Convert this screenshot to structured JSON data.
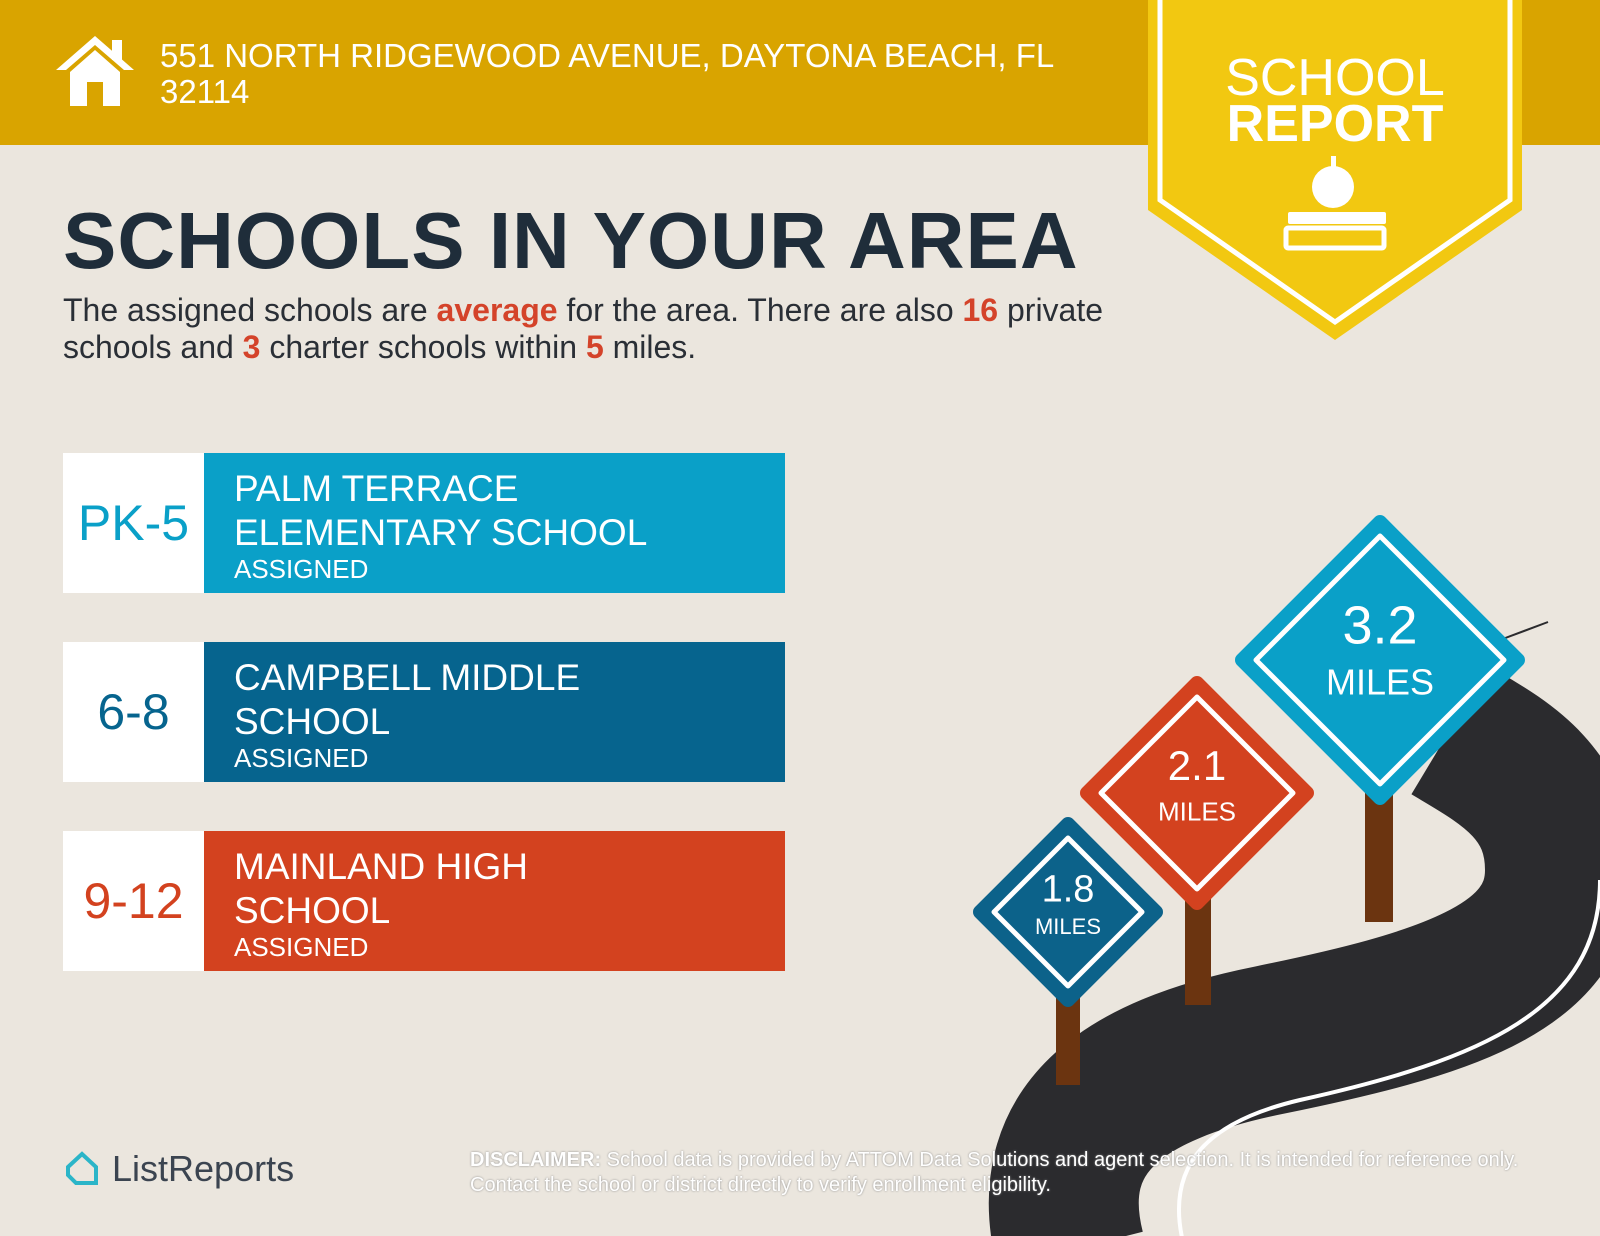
{
  "header": {
    "address": "551 NORTH RIDGEWOOD AVENUE, DAYTONA BEACH, FL 32114"
  },
  "badge": {
    "line1": "SCHOOL",
    "line2": "REPORT"
  },
  "title": "SCHOOLS IN YOUR AREA",
  "summary": [
    "The assigned schools are ",
    "average",
    " for the area. There are also ",
    "16",
    " private schools and ",
    "3",
    " charter schools within ",
    "5",
    " miles."
  ],
  "schools": [
    {
      "grade": "PK-5",
      "name": "PALM TERRACE ELEMENTARY SCHOOL",
      "status": "ASSIGNED"
    },
    {
      "grade": "6-8",
      "name": "CAMPBELL MIDDLE SCHOOL",
      "status": "ASSIGNED"
    },
    {
      "grade": "9-12",
      "name": "MAINLAND HIGH SCHOOL",
      "status": "ASSIGNED"
    }
  ],
  "signs": [
    {
      "distance": "1.8",
      "unit": "MILES"
    },
    {
      "distance": "2.1",
      "unit": "MILES"
    },
    {
      "distance": "3.2",
      "unit": "MILES"
    }
  ],
  "footer": {
    "logo": "ListReports",
    "disclaimer_label": "DISCLAIMER:",
    "disclaimer": " School data is provided by ATTOM Data Solutions and agent selection. It is intended for reference only. Contact the school or district directly to verify enrollment eligibility."
  }
}
